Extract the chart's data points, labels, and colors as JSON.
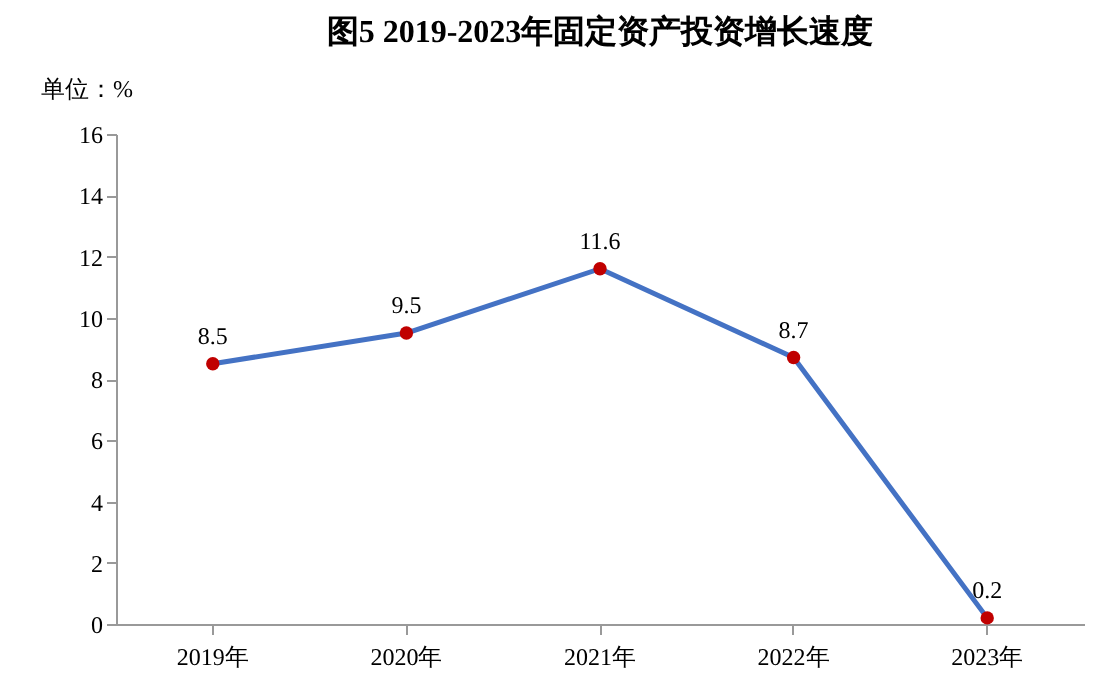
{
  "chart_data": {
    "type": "line",
    "title": "图5 2019-2023年固定资产投资增长速度",
    "ylabel": "单位：%",
    "categories": [
      "2019年",
      "2020年",
      "2021年",
      "2022年",
      "2023年"
    ],
    "series": [
      {
        "color": "#4472c4",
        "colors": [
          "#c00000",
          "#c00000",
          "#c00000",
          "#c00000",
          "#c00000"
        ],
        "values": [
          8.5,
          9.5,
          11.6,
          8.7,
          0.2
        ]
      }
    ],
    "ylim": [
      0,
      16
    ],
    "yticks": [
      0,
      2,
      4,
      6,
      8,
      10,
      12,
      14,
      16
    ],
    "grid": false,
    "data_labels": true,
    "marker": "circle",
    "line_style": "solid"
  }
}
